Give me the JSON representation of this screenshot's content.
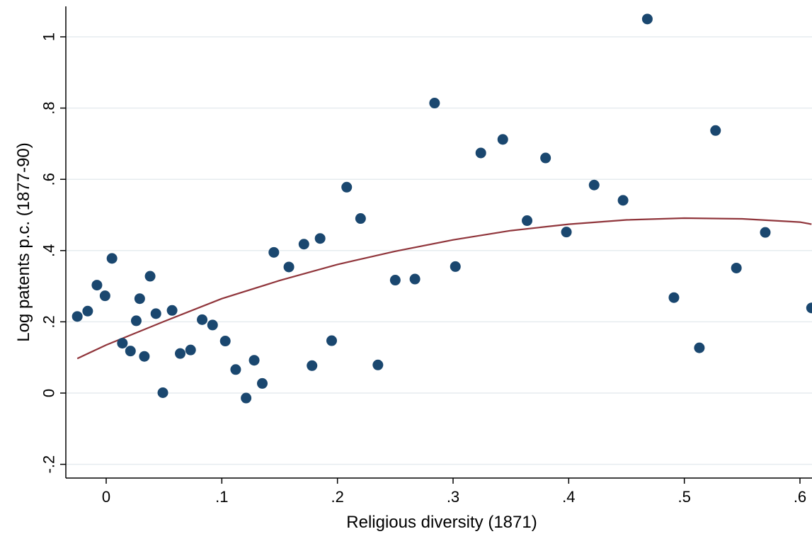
{
  "chart_data": {
    "type": "scatter",
    "title": "",
    "xlabel": "Religious diversity (1871)",
    "ylabel": "Log patents p.c. (1877-90)",
    "xlim": [
      -0.035,
      0.61
    ],
    "ylim": [
      -0.25,
      1.08
    ],
    "x_ticks": [
      0,
      0.1,
      0.2,
      0.3,
      0.4,
      0.5,
      0.6
    ],
    "x_tick_labels": [
      "0",
      ".1",
      ".2",
      ".3",
      ".4",
      ".5",
      ".6"
    ],
    "y_ticks": [
      -0.2,
      0,
      0.2,
      0.4,
      0.6,
      0.8,
      1
    ],
    "y_tick_labels": [
      "-.2",
      "0",
      ".2",
      ".4",
      ".6",
      ".8",
      "1"
    ],
    "grid": "horizontal",
    "legend": "none",
    "colors": {
      "points": "#1a476f",
      "fit": "#90353b",
      "grid": "#e6ecef",
      "axis": "#000000"
    },
    "points": [
      {
        "x": -0.025,
        "y": 0.215
      },
      {
        "x": -0.016,
        "y": 0.23
      },
      {
        "x": -0.008,
        "y": 0.303
      },
      {
        "x": -0.001,
        "y": 0.273
      },
      {
        "x": 0.005,
        "y": 0.378
      },
      {
        "x": 0.014,
        "y": 0.14
      },
      {
        "x": 0.021,
        "y": 0.118
      },
      {
        "x": 0.026,
        "y": 0.203
      },
      {
        "x": 0.029,
        "y": 0.265
      },
      {
        "x": 0.033,
        "y": 0.103
      },
      {
        "x": 0.038,
        "y": 0.328
      },
      {
        "x": 0.043,
        "y": 0.223
      },
      {
        "x": 0.049,
        "y": 0.001
      },
      {
        "x": 0.057,
        "y": 0.232
      },
      {
        "x": 0.064,
        "y": 0.111
      },
      {
        "x": 0.073,
        "y": 0.121
      },
      {
        "x": 0.083,
        "y": 0.206
      },
      {
        "x": 0.092,
        "y": 0.191
      },
      {
        "x": 0.103,
        "y": 0.146
      },
      {
        "x": 0.112,
        "y": 0.066
      },
      {
        "x": 0.121,
        "y": -0.014
      },
      {
        "x": 0.128,
        "y": 0.092
      },
      {
        "x": 0.135,
        "y": 0.027
      },
      {
        "x": 0.145,
        "y": 0.395
      },
      {
        "x": 0.158,
        "y": 0.354
      },
      {
        "x": 0.171,
        "y": 0.418
      },
      {
        "x": 0.178,
        "y": 0.077
      },
      {
        "x": 0.185,
        "y": 0.434
      },
      {
        "x": 0.195,
        "y": 0.147
      },
      {
        "x": 0.208,
        "y": 0.578
      },
      {
        "x": 0.22,
        "y": 0.49
      },
      {
        "x": 0.235,
        "y": 0.079
      },
      {
        "x": 0.25,
        "y": 0.317
      },
      {
        "x": 0.267,
        "y": 0.32
      },
      {
        "x": 0.284,
        "y": 0.814
      },
      {
        "x": 0.302,
        "y": 0.355
      },
      {
        "x": 0.324,
        "y": 0.674
      },
      {
        "x": 0.343,
        "y": 0.712
      },
      {
        "x": 0.364,
        "y": 0.484
      },
      {
        "x": 0.38,
        "y": 0.66
      },
      {
        "x": 0.398,
        "y": 0.452
      },
      {
        "x": 0.422,
        "y": 0.584
      },
      {
        "x": 0.447,
        "y": 0.541
      },
      {
        "x": 0.468,
        "y": 1.05
      },
      {
        "x": 0.491,
        "y": 0.268
      },
      {
        "x": 0.513,
        "y": 0.127
      },
      {
        "x": 0.527,
        "y": 0.737
      },
      {
        "x": 0.545,
        "y": 0.351
      },
      {
        "x": 0.57,
        "y": 0.451
      },
      {
        "x": 0.61,
        "y": 0.239
      }
    ],
    "fit_line": {
      "type": "quadratic",
      "x": [
        -0.025,
        0.0,
        0.05,
        0.1,
        0.15,
        0.2,
        0.25,
        0.3,
        0.35,
        0.4,
        0.45,
        0.5,
        0.55,
        0.6,
        0.61
      ],
      "y": [
        0.097,
        0.135,
        0.201,
        0.265,
        0.316,
        0.361,
        0.398,
        0.43,
        0.456,
        0.474,
        0.486,
        0.491,
        0.489,
        0.48,
        0.474
      ]
    }
  }
}
